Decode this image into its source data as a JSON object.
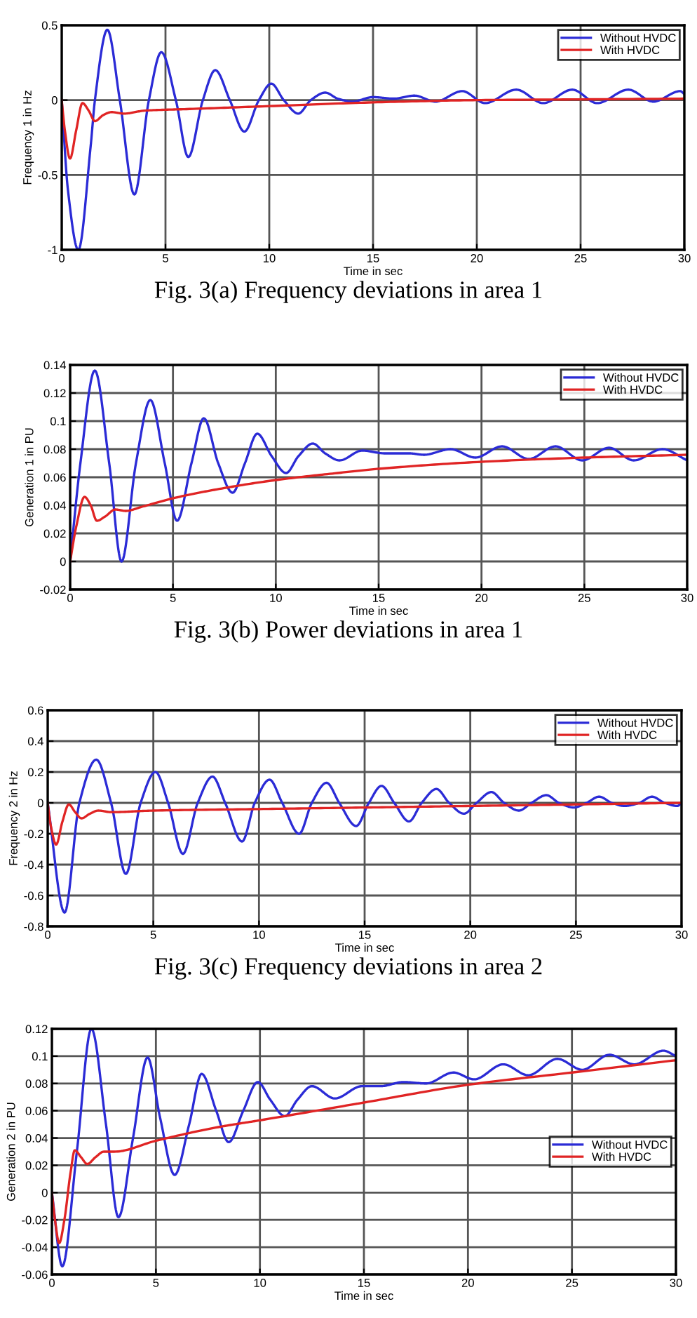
{
  "chart_data": [
    {
      "type": "line",
      "xlabel": "Time in sec",
      "ylabel": "Frequency 1 in Hz",
      "annotations": [
        "Fig. 3(a) Frequency deviations in area 1"
      ],
      "xlim": [
        0,
        30
      ],
      "xticks": [
        0,
        5,
        10,
        15,
        20,
        25,
        30
      ],
      "ylim": [
        -1,
        0.5
      ],
      "yticks": [
        -1,
        -0.5,
        0,
        0.5
      ],
      "grid": true,
      "legend": "top right",
      "series": [
        {
          "name": "Without HVDC",
          "color": "#2b2bd6",
          "x": [
            0,
            0.3,
            0.8,
            1.4,
            1.6,
            2.2,
            2.8,
            3.5,
            4.2,
            4.8,
            5.5,
            6.1,
            6.8,
            7.4,
            8.1,
            8.8,
            9.5,
            10.1,
            10.7,
            11.4,
            12.0,
            12.7,
            13.3,
            14.0,
            15.0,
            16.0,
            17.0,
            18.0,
            19.3,
            20.4,
            21.9,
            23.2,
            24.6,
            25.8,
            27.3,
            28.5,
            29.8,
            30
          ],
          "values": [
            0,
            -0.6,
            -1.0,
            -0.3,
            0,
            0.47,
            0,
            -0.63,
            0,
            0.32,
            0,
            -0.38,
            0,
            0.2,
            0,
            -0.21,
            0,
            0.11,
            0,
            -0.09,
            0,
            0.05,
            0.01,
            -0.01,
            0.02,
            0.01,
            0.03,
            -0.01,
            0.06,
            -0.02,
            0.07,
            -0.02,
            0.07,
            -0.02,
            0.07,
            -0.01,
            0.06,
            0.04
          ]
        },
        {
          "name": "With HVDC",
          "color": "#e02424",
          "x": [
            0,
            0.15,
            0.4,
            0.7,
            1.0,
            1.3,
            1.6,
            2.0,
            2.4,
            3.0,
            4,
            6,
            10,
            15,
            20,
            25,
            30
          ],
          "values": [
            0,
            -0.2,
            -0.39,
            -0.2,
            -0.02,
            -0.07,
            -0.14,
            -0.1,
            -0.08,
            -0.09,
            -0.07,
            -0.06,
            -0.04,
            -0.015,
            0,
            0.005,
            0.01
          ]
        }
      ]
    },
    {
      "type": "line",
      "xlabel": "Time in sec",
      "ylabel": "Generation 1 in PU",
      "annotations": [
        "Fig. 3(b) Power deviations in area 1"
      ],
      "xlim": [
        0,
        30
      ],
      "xticks": [
        0,
        5,
        10,
        15,
        20,
        25,
        30
      ],
      "ylim": [
        -0.02,
        0.14
      ],
      "yticks": [
        -0.02,
        0,
        0.02,
        0.04,
        0.06,
        0.08,
        0.1,
        0.12,
        0.14
      ],
      "grid": true,
      "legend": "top right",
      "series": [
        {
          "name": "Without HVDC",
          "color": "#2b2bd6",
          "x": [
            0,
            0.5,
            1.2,
            1.9,
            2.5,
            3.2,
            3.9,
            4.6,
            5.2,
            5.9,
            6.5,
            7.2,
            7.9,
            8.5,
            9.1,
            9.8,
            10.5,
            11.1,
            11.8,
            12.4,
            13.1,
            14.2,
            15.3,
            16.5,
            17.2,
            18.5,
            19.7,
            21.0,
            22.3,
            23.6,
            24.9,
            26.2,
            27.4,
            28.8,
            30
          ],
          "values": [
            0,
            0.07,
            0.136,
            0.07,
            0,
            0.07,
            0.115,
            0.07,
            0.029,
            0.07,
            0.102,
            0.07,
            0.049,
            0.07,
            0.091,
            0.075,
            0.063,
            0.075,
            0.084,
            0.077,
            0.072,
            0.079,
            0.077,
            0.077,
            0.076,
            0.08,
            0.074,
            0.082,
            0.073,
            0.082,
            0.072,
            0.081,
            0.072,
            0.08,
            0.072
          ]
        },
        {
          "name": "With HVDC",
          "color": "#e02424",
          "x": [
            0,
            0.3,
            0.7,
            1.0,
            1.3,
            1.7,
            2.2,
            2.7,
            3.5,
            5,
            7,
            10,
            13,
            15,
            20,
            25,
            30
          ],
          "values": [
            0,
            0.025,
            0.046,
            0.04,
            0.029,
            0.032,
            0.037,
            0.036,
            0.039,
            0.045,
            0.051,
            0.058,
            0.063,
            0.066,
            0.071,
            0.074,
            0.076
          ]
        }
      ]
    },
    {
      "type": "line",
      "xlabel": "Time in sec",
      "ylabel": "Frequency 2 in Hz",
      "annotations": [
        "Fig. 3(c) Frequency deviations in area 2"
      ],
      "xlim": [
        0,
        30
      ],
      "xticks": [
        0,
        5,
        10,
        15,
        20,
        25,
        30
      ],
      "ylim": [
        -0.8,
        0.6
      ],
      "yticks": [
        -0.8,
        -0.6,
        -0.4,
        -0.2,
        0,
        0.2,
        0.4,
        0.6
      ],
      "grid": true,
      "legend": "top right",
      "series": [
        {
          "name": "Without HVDC",
          "color": "#2b2bd6",
          "x": [
            0,
            0.8,
            1.5,
            2.3,
            3.0,
            3.7,
            4.4,
            5.1,
            5.7,
            6.4,
            7.1,
            7.8,
            8.4,
            9.2,
            9.8,
            10.5,
            11.1,
            11.9,
            12.5,
            13.2,
            13.8,
            14.6,
            15.2,
            15.8,
            16.4,
            17.1,
            17.7,
            18.4,
            19.0,
            19.7,
            20.3,
            21.0,
            21.6,
            22.3,
            22.9,
            23.6,
            24.2,
            24.9,
            25.5,
            26.1,
            26.7,
            27.3,
            28.0,
            28.6,
            29.2,
            29.8,
            30
          ],
          "values": [
            0,
            -0.71,
            0,
            0.28,
            0,
            -0.46,
            0,
            0.2,
            0,
            -0.33,
            0,
            0.17,
            0,
            -0.25,
            0,
            0.15,
            0,
            -0.2,
            0,
            0.13,
            0,
            -0.15,
            0,
            0.11,
            0,
            -0.12,
            0,
            0.09,
            0,
            -0.07,
            0,
            0.07,
            0,
            -0.05,
            0,
            0.05,
            0,
            -0.03,
            0,
            0.04,
            0,
            -0.02,
            0,
            0.04,
            0,
            -0.02,
            0
          ]
        },
        {
          "name": "With HVDC",
          "color": "#e02424",
          "x": [
            0,
            0.15,
            0.4,
            0.7,
            1.0,
            1.3,
            1.6,
            2.0,
            2.4,
            3,
            5,
            10,
            15,
            20,
            25,
            30
          ],
          "values": [
            0,
            -0.15,
            -0.27,
            -0.12,
            -0.01,
            -0.06,
            -0.1,
            -0.07,
            -0.05,
            -0.06,
            -0.05,
            -0.04,
            -0.03,
            -0.02,
            -0.01,
            0
          ]
        }
      ]
    },
    {
      "type": "line",
      "xlabel": "Time in sec",
      "ylabel": "Generation 2 in PU",
      "xlim": [
        0,
        30
      ],
      "xticks": [
        0,
        5,
        10,
        15,
        20,
        25,
        30
      ],
      "ylim": [
        -0.06,
        0.12
      ],
      "yticks": [
        -0.06,
        -0.04,
        -0.02,
        0,
        0.02,
        0.04,
        0.06,
        0.08,
        0.1,
        0.12
      ],
      "grid": true,
      "legend": "right",
      "series": [
        {
          "name": "Without HVDC",
          "color": "#2b2bd6",
          "x": [
            0,
            0.5,
            1.2,
            1.9,
            2.6,
            3.2,
            3.9,
            4.6,
            5.2,
            5.9,
            6.6,
            7.2,
            7.9,
            8.5,
            9.2,
            9.9,
            10.5,
            11.2,
            11.8,
            12.5,
            13.6,
            14.9,
            15.8,
            16.9,
            18.0,
            19.3,
            20.3,
            21.7,
            22.9,
            24.3,
            25.5,
            26.8,
            28.0,
            29.4,
            30
          ],
          "values": [
            0,
            -0.054,
            0.03,
            0.12,
            0.05,
            -0.018,
            0.04,
            0.099,
            0.055,
            0.013,
            0.05,
            0.087,
            0.06,
            0.037,
            0.06,
            0.081,
            0.068,
            0.056,
            0.068,
            0.078,
            0.069,
            0.078,
            0.078,
            0.081,
            0.08,
            0.088,
            0.083,
            0.094,
            0.086,
            0.098,
            0.09,
            0.101,
            0.094,
            0.104,
            0.1
          ]
        },
        {
          "name": "With HVDC",
          "color": "#e02424",
          "x": [
            0,
            0.15,
            0.35,
            0.6,
            0.9,
            1.1,
            1.4,
            1.7,
            2.1,
            2.5,
            3,
            5,
            8,
            10,
            15,
            20,
            25,
            30
          ],
          "values": [
            0,
            -0.02,
            -0.037,
            -0.02,
            0.015,
            0.031,
            0.026,
            0.021,
            0.026,
            0.03,
            0.03,
            0.038,
            0.048,
            0.053,
            0.066,
            0.079,
            0.088,
            0.097
          ]
        }
      ]
    }
  ]
}
